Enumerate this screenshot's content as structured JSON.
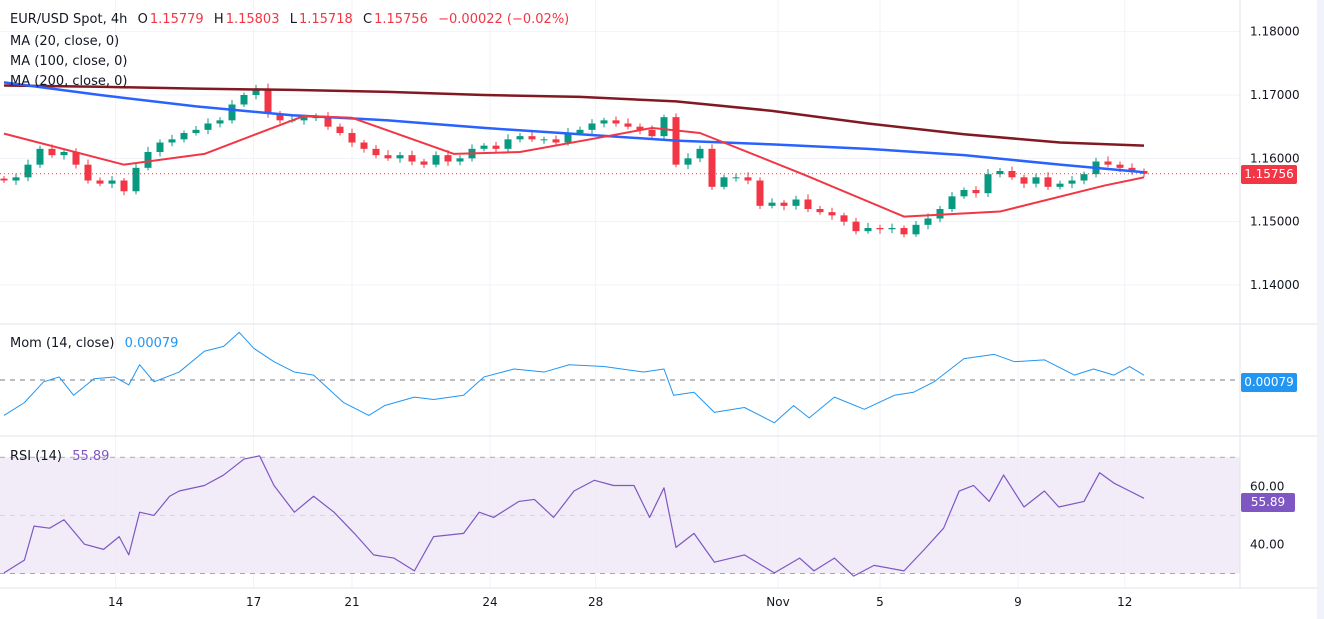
{
  "header": {
    "symbol": "EUR/USD Spot, 4h",
    "o_label": "O",
    "o": "1.15779",
    "h_label": "H",
    "h": "1.15803",
    "l_label": "L",
    "l": "1.15718",
    "c_label": "C",
    "c": "1.15756",
    "change": "−0.00022 (−0.02%)"
  },
  "indicators": {
    "ma20": "MA (20, close, 0)",
    "ma100": "MA (100, close, 0)",
    "ma200": "MA (200, close, 0)",
    "mom_label": "Mom (14, close)",
    "mom_value": "0.00079",
    "rsi_label": "RSI (14)",
    "rsi_value": "55.89"
  },
  "colors": {
    "up": "#089981",
    "down": "#f23645",
    "ma20": "#f23645",
    "ma100": "#2962ff",
    "ma200": "#801922",
    "mom": "#2196f3",
    "rsi": "#7e57c2",
    "rsi_band": "#ede7f6"
  },
  "chart_data": [
    {
      "type": "candlestick",
      "title": "EUR/USD Spot, 4h",
      "ylim": [
        1.134,
        1.185
      ],
      "y_ticks": [
        "1.18000",
        "1.17000",
        "1.16000",
        "1.15000",
        "1.14000"
      ],
      "y_tick_values": [
        1.18,
        1.17,
        1.16,
        1.15,
        1.14
      ],
      "last_price": 1.15756,
      "last_price_label": "1.15756",
      "x_ticks": [
        {
          "label": "14",
          "i": 9.3
        },
        {
          "label": "17",
          "i": 20.8
        },
        {
          "label": "21",
          "i": 29
        },
        {
          "label": "24",
          "i": 40.5
        },
        {
          "label": "28",
          "i": 49.3
        },
        {
          "label": "Nov",
          "i": 64.5
        },
        {
          "label": "5",
          "i": 73
        },
        {
          "label": "9",
          "i": 84.5
        },
        {
          "label": "12",
          "i": 93.4
        }
      ],
      "closes": [
        1.1565,
        1.157,
        1.159,
        1.1615,
        1.1605,
        1.161,
        1.159,
        1.1565,
        1.156,
        1.1565,
        1.1548,
        1.1585,
        1.161,
        1.1625,
        1.163,
        1.164,
        1.1645,
        1.1655,
        1.166,
        1.1685,
        1.17,
        1.171,
        1.167,
        1.166,
        1.166,
        1.1665,
        1.1665,
        1.165,
        1.164,
        1.1625,
        1.1615,
        1.1605,
        1.16,
        1.1605,
        1.1595,
        1.159,
        1.1605,
        1.1595,
        1.16,
        1.1615,
        1.162,
        1.1615,
        1.163,
        1.1635,
        1.163,
        1.163,
        1.1625,
        1.164,
        1.1645,
        1.1655,
        1.166,
        1.1655,
        1.165,
        1.1645,
        1.1635,
        1.1665,
        1.159,
        1.16,
        1.1615,
        1.1555,
        1.157,
        1.157,
        1.1565,
        1.1525,
        1.153,
        1.1525,
        1.1535,
        1.152,
        1.1515,
        1.151,
        1.15,
        1.1485,
        1.149,
        1.1488,
        1.149,
        1.148,
        1.1495,
        1.1505,
        1.152,
        1.154,
        1.155,
        1.1545,
        1.1575,
        1.158,
        1.157,
        1.156,
        1.157,
        1.1555,
        1.156,
        1.1565,
        1.1575,
        1.1595,
        1.159,
        1.1585,
        1.158,
        1.15756
      ],
      "ma20": [
        [
          0,
          1.1639
        ],
        [
          10,
          1.159
        ],
        [
          16.7,
          1.1607
        ],
        [
          25,
          1.1667
        ],
        [
          29,
          1.1664
        ],
        [
          37.5,
          1.1607
        ],
        [
          43,
          1.161
        ],
        [
          50,
          1.1634
        ],
        [
          54,
          1.1648
        ],
        [
          58,
          1.164
        ],
        [
          66.7,
          1.1574
        ],
        [
          75,
          1.1508
        ],
        [
          83,
          1.1516
        ],
        [
          91.7,
          1.1557
        ],
        [
          95,
          1.157
        ]
      ],
      "ma100": [
        [
          0,
          1.172
        ],
        [
          8,
          1.17
        ],
        [
          16,
          1.1682
        ],
        [
          24,
          1.1668
        ],
        [
          32,
          1.166
        ],
        [
          40,
          1.1648
        ],
        [
          48,
          1.1638
        ],
        [
          56,
          1.1628
        ],
        [
          64,
          1.1622
        ],
        [
          72,
          1.1615
        ],
        [
          80,
          1.1605
        ],
        [
          88,
          1.159
        ],
        [
          95,
          1.1578
        ]
      ],
      "ma200": [
        [
          0,
          1.1715
        ],
        [
          8,
          1.1713
        ],
        [
          16,
          1.171
        ],
        [
          24,
          1.1708
        ],
        [
          32,
          1.1705
        ],
        [
          40,
          1.17
        ],
        [
          48,
          1.1697
        ],
        [
          56,
          1.169
        ],
        [
          64,
          1.1675
        ],
        [
          72,
          1.1655
        ],
        [
          80,
          1.1638
        ],
        [
          88,
          1.1625
        ],
        [
          95,
          1.162
        ]
      ]
    },
    {
      "type": "line",
      "title": "Mom (14, close)",
      "ylim": [
        -0.009,
        0.009
      ],
      "last_value_label": "0.00079",
      "points": [
        [
          0,
          -0.0058
        ],
        [
          1.7,
          -0.0037
        ],
        [
          3.3,
          -0.0003
        ],
        [
          4.6,
          0.0005
        ],
        [
          5.8,
          -0.0025
        ],
        [
          7.5,
          0.0002
        ],
        [
          9.2,
          0.0005
        ],
        [
          10.4,
          -0.0008
        ],
        [
          11.3,
          0.0025
        ],
        [
          12.5,
          -0.0003
        ],
        [
          14.6,
          0.0013
        ],
        [
          16.7,
          0.0047
        ],
        [
          18.3,
          0.0055
        ],
        [
          19.6,
          0.0078
        ],
        [
          20.8,
          0.0052
        ],
        [
          22.5,
          0.003
        ],
        [
          24.2,
          0.0013
        ],
        [
          25.8,
          0.0008
        ],
        [
          28.3,
          -0.0037
        ],
        [
          30.4,
          -0.0058
        ],
        [
          31.7,
          -0.0042
        ],
        [
          34.2,
          -0.0028
        ],
        [
          35.8,
          -0.0032
        ],
        [
          38.3,
          -0.0025
        ],
        [
          40,
          0.0005
        ],
        [
          42.5,
          0.0018
        ],
        [
          45,
          0.0013
        ],
        [
          47.1,
          0.0025
        ],
        [
          50,
          0.0022
        ],
        [
          53.3,
          0.0013
        ],
        [
          55,
          0.0018
        ],
        [
          55.8,
          -0.0025
        ],
        [
          57.5,
          -0.002
        ],
        [
          59.2,
          -0.0053
        ],
        [
          61.7,
          -0.0045
        ],
        [
          64.2,
          -0.007
        ],
        [
          65.8,
          -0.0042
        ],
        [
          67.1,
          -0.0062
        ],
        [
          69.2,
          -0.0028
        ],
        [
          71.7,
          -0.0048
        ],
        [
          74.2,
          -0.0025
        ],
        [
          75.8,
          -0.002
        ],
        [
          77.5,
          -0.0003
        ],
        [
          80,
          0.0035
        ],
        [
          82.5,
          0.0042
        ],
        [
          84.2,
          0.003
        ],
        [
          86.7,
          0.0033
        ],
        [
          89.2,
          0.0008
        ],
        [
          90.8,
          0.0018
        ],
        [
          92.5,
          0.0008
        ],
        [
          93.8,
          0.0022
        ],
        [
          95,
          0.00079
        ]
      ]
    },
    {
      "type": "line",
      "title": "RSI (14)",
      "ylim": [
        25,
        77
      ],
      "band": [
        30,
        70
      ],
      "y_ticks": [
        "60.00",
        "40.00"
      ],
      "y_tick_values": [
        60,
        40
      ],
      "last_value_label": "55.89",
      "points": [
        [
          0,
          30.2
        ],
        [
          1.7,
          34.6
        ],
        [
          2.5,
          46.3
        ],
        [
          3.8,
          45.6
        ],
        [
          5,
          48.5
        ],
        [
          6.7,
          40.1
        ],
        [
          8.3,
          38.3
        ],
        [
          9.6,
          42.7
        ],
        [
          10.4,
          36.4
        ],
        [
          11.3,
          51.1
        ],
        [
          12.5,
          50
        ],
        [
          13.8,
          56.6
        ],
        [
          14.6,
          58.4
        ],
        [
          16.7,
          60.3
        ],
        [
          18.3,
          63.9
        ],
        [
          20,
          69.4
        ],
        [
          21.3,
          70.5
        ],
        [
          22.5,
          60.3
        ],
        [
          24.2,
          51.1
        ],
        [
          25.8,
          56.6
        ],
        [
          27.5,
          51.1
        ],
        [
          29.2,
          43.8
        ],
        [
          30.8,
          36.4
        ],
        [
          32.5,
          35.3
        ],
        [
          34.2,
          30.9
        ],
        [
          35.8,
          42.7
        ],
        [
          38.3,
          43.8
        ],
        [
          39.6,
          51.1
        ],
        [
          40.8,
          49.3
        ],
        [
          42.9,
          54.8
        ],
        [
          44.2,
          55.5
        ],
        [
          45.8,
          49.3
        ],
        [
          47.5,
          58.4
        ],
        [
          49.2,
          62.1
        ],
        [
          50.8,
          60.3
        ],
        [
          52.5,
          60.3
        ],
        [
          53.8,
          49.3
        ],
        [
          55,
          59.5
        ],
        [
          56,
          39
        ],
        [
          57.5,
          43.8
        ],
        [
          59.2,
          33.9
        ],
        [
          61.7,
          36.4
        ],
        [
          64.2,
          30.2
        ],
        [
          66.3,
          35.3
        ],
        [
          67.5,
          30.9
        ],
        [
          69.2,
          35.3
        ],
        [
          70.8,
          29.1
        ],
        [
          72.5,
          32.8
        ],
        [
          75,
          30.9
        ],
        [
          76.7,
          38.3
        ],
        [
          78.3,
          45.6
        ],
        [
          79.6,
          58.4
        ],
        [
          80.8,
          60.3
        ],
        [
          82.1,
          54.8
        ],
        [
          83.3,
          63.9
        ],
        [
          85,
          52.9
        ],
        [
          86.7,
          58.4
        ],
        [
          87.9,
          52.9
        ],
        [
          90,
          54.8
        ],
        [
          91.3,
          64.7
        ],
        [
          92.5,
          61.1
        ],
        [
          93.8,
          58.4
        ],
        [
          95,
          55.89
        ]
      ]
    }
  ]
}
